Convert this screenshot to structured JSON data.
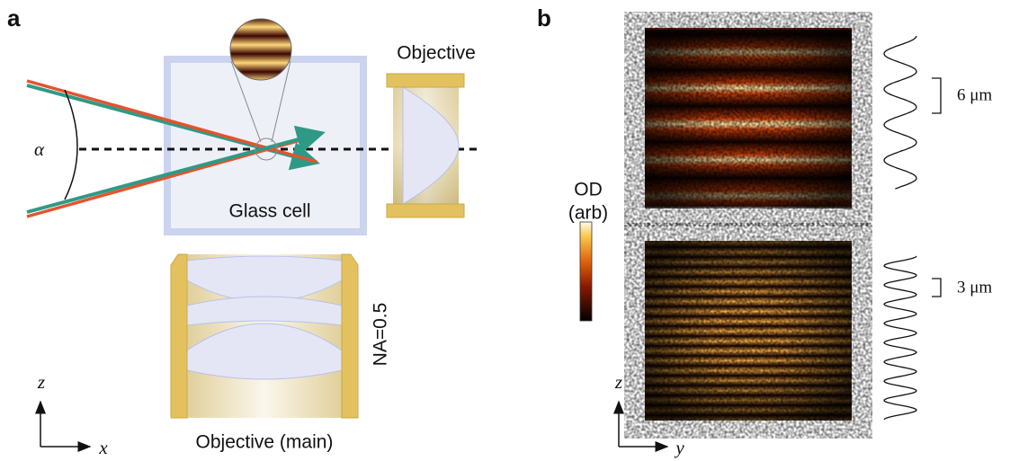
{
  "panel_a": {
    "label": "a",
    "objective": "Objective",
    "cell": "Glass cell",
    "angle": "α",
    "na": "NA=0.5",
    "main_objective": "Objective (main)",
    "axes": {
      "z": "z",
      "x": "x"
    }
  },
  "panel_b": {
    "label": "b",
    "colorbar": {
      "title": "OD",
      "unit": "(arb)"
    },
    "spacings": [
      "6 μm",
      "3 μm"
    ],
    "axes": {
      "z": "z",
      "y": "y"
    }
  }
}
